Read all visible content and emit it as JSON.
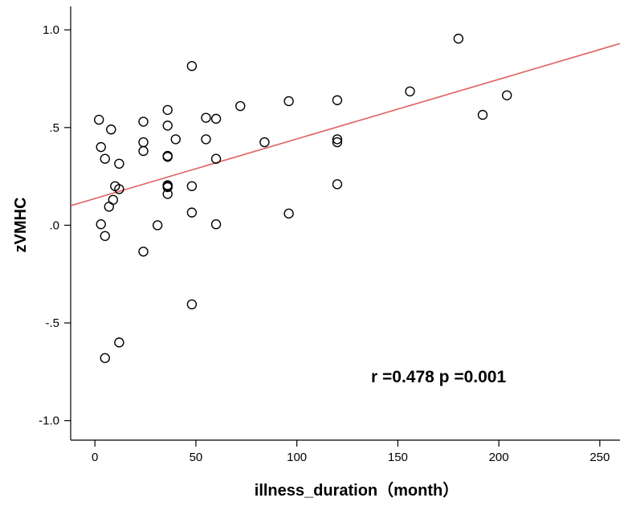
{
  "chart_data": {
    "type": "scatter",
    "title": "",
    "xlabel": "illness_duration（month）",
    "ylabel": "zVMHC",
    "xlim": [
      -12,
      260
    ],
    "ylim": [
      -1.1,
      1.12
    ],
    "x_ticks": [
      0,
      50,
      100,
      150,
      200,
      250
    ],
    "x_tick_labels": [
      "0",
      "50",
      "100",
      "150",
      "200",
      "250"
    ],
    "y_ticks": [
      1.0,
      0.5,
      0.0,
      -0.5,
      -1.0
    ],
    "y_tick_labels": [
      "1.0",
      ".5",
      ".0",
      "-.5",
      "-1.0"
    ],
    "grid": false,
    "annotation": "r =0.478  p =0.001",
    "marker_color": "#000000",
    "fit_line": {
      "color": "#e06060",
      "x": [
        -12,
        260
      ],
      "y": [
        0.1,
        0.93
      ]
    },
    "series": [
      {
        "x": [
          2,
          3,
          3,
          5,
          5,
          5,
          7,
          8,
          9,
          10,
          12,
          12,
          12,
          24,
          24,
          24,
          24,
          31,
          36,
          36,
          36,
          36,
          36,
          36,
          36,
          36,
          40,
          48,
          48,
          48,
          48,
          55,
          55,
          60,
          60,
          60,
          72,
          84,
          96,
          96,
          120,
          120,
          120,
          120,
          156,
          180,
          192,
          204
        ],
        "y": [
          0.54,
          0.4,
          0.005,
          0.34,
          -0.055,
          -0.68,
          0.095,
          0.49,
          0.13,
          0.2,
          0.315,
          0.185,
          -0.6,
          0.53,
          0.425,
          0.38,
          -0.135,
          0.0,
          0.59,
          0.51,
          0.355,
          0.35,
          0.205,
          0.195,
          0.16,
          0.2,
          0.44,
          0.815,
          0.065,
          -0.405,
          0.2,
          0.55,
          0.44,
          0.545,
          0.34,
          0.005,
          0.61,
          0.425,
          0.635,
          0.06,
          0.64,
          0.44,
          0.425,
          0.21,
          0.685,
          0.955,
          0.565,
          0.665
        ]
      }
    ]
  }
}
